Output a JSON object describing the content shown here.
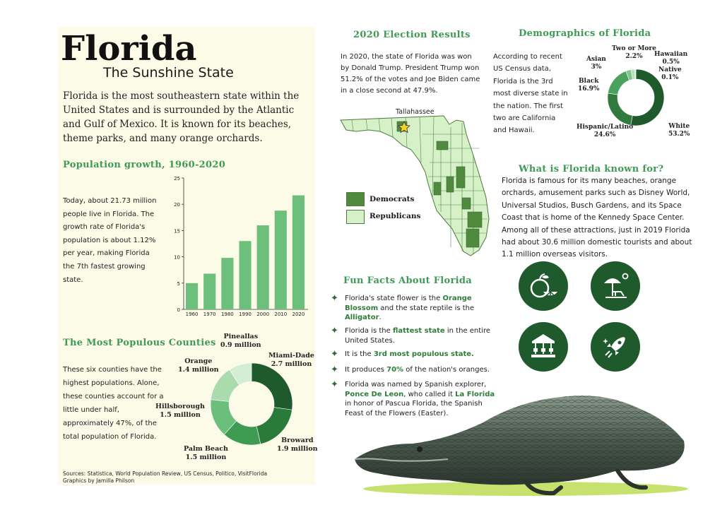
{
  "title": "Florida",
  "subtitle": "The Sunshine State",
  "intro": "Florida is the most southeastern state within the United States and is surrounded by the Atlantic and Gulf of Mexico. It is known for its beaches, theme parks, and many orange orchards.",
  "population": {
    "heading": "Population growth, 1960-2020",
    "text": "Today, about 21.73 million people live in Florida. The growth rate of Florida's population is about 1.12% per year, making Florida the 7th fastest growing state."
  },
  "counties": {
    "heading": "The Most Populous Counties",
    "text": "These six counties have the highest populations. Alone, these counties account for a little under half, approximately 47%, of the total population of Florida.",
    "labels": {
      "pineallas": [
        "Pineallas",
        "0.9 million"
      ],
      "miami": [
        "Miami-Dade",
        "2.7 million"
      ],
      "orange": [
        "Orange",
        "1.4 million"
      ],
      "hillsborough": [
        "Hillsborough",
        "1.5 million"
      ],
      "broward": [
        "Broward",
        "1.9 million"
      ],
      "palmbeach": [
        "Palm Beach",
        "1.5 million"
      ]
    }
  },
  "sources": {
    "line1": "Sources: Statistica, World Population Review, US Census, Politico, VisitFlorida",
    "line2": "Graphics by Jamilla Philson"
  },
  "election": {
    "heading": "2020 Election Results",
    "text": "In 2020, the state of Florida was won by Donald Trump. President Trump won 51.2% of the votes and Joe Biden came in a close second at 47.9%.",
    "capital": "Tallahassee",
    "legend": {
      "dem": "Democrats",
      "rep": "Republicans"
    }
  },
  "demographics": {
    "heading": "Demographics of Florida",
    "text": "According to recent US Census data, Florida is the 3rd most diverse state in the nation. The first two are California and Hawaii.",
    "labels": {
      "two": [
        "Two or More",
        "2.2%"
      ],
      "asian": [
        "Asian",
        "3%"
      ],
      "hawaiian": [
        "Hawaiian",
        "0.5%"
      ],
      "native": [
        "Native",
        "0.1%"
      ],
      "black": [
        "Black",
        "16.9%"
      ],
      "hispanic": [
        "Hispanic/Latino",
        "24.6%"
      ],
      "white": [
        "White",
        "53.2%"
      ]
    }
  },
  "known": {
    "heading": "What is Florida known for?",
    "text": "Florida is famous for its many beaches, orange orchards,  amusement parks such as Disney World, Universal Studios, Busch Gardens, and its Space Coast that is home of the Kennedy Space Center. Among all of these attractions, just in 2019 Florida had about 30.6 million domestic tourists and about 1.1 million overseas visitors."
  },
  "fun": {
    "heading": "Fun Facts About Florida",
    "facts": [
      {
        "a": "Florida's state flower is the ",
        "b": "Orange Blossom",
        "c": " and the state reptile is the ",
        "d": "Alligator",
        "e": "."
      },
      {
        "a": "Florida is the ",
        "b": "flattest state",
        "c": " in the entire United States."
      },
      {
        "a": "It is the ",
        "b": "3rd most populous state."
      },
      {
        "a": "It produces ",
        "b": "70%",
        "c": " of the nation's oranges."
      },
      {
        "a": "Florida was named by Spanish explorer, ",
        "b": "Ponce De Leon",
        "c": ", who called it ",
        "d": "La Florida",
        "e": " in honor of Pascua Florida, the Spanish Feast of the Flowers (Easter)."
      }
    ]
  },
  "icons": [
    "orange-icon",
    "beach-icon",
    "carousel-icon",
    "rocket-icon"
  ],
  "colors": {
    "accent": "#3e9a55",
    "dark": "#1e5a2b",
    "dem": "#4f8a3f",
    "rep": "#d6f0c8",
    "panel": "#fbfbe8"
  },
  "chart_data": [
    {
      "type": "bar",
      "categories": [
        "1960",
        "1970",
        "1980",
        "1990",
        "2000",
        "2010",
        "2020"
      ],
      "values": [
        5,
        6.8,
        9.8,
        13,
        16,
        18.8,
        21.7
      ],
      "title": "Population growth, 1960-2020",
      "ylim": [
        0,
        25
      ],
      "yticks": [
        0,
        5,
        10,
        15,
        20,
        25
      ]
    },
    {
      "type": "pie",
      "title": "The Most Populous Counties",
      "categories": [
        "Miami-Dade",
        "Broward",
        "Palm Beach",
        "Hillsborough",
        "Orange",
        "Pineallas"
      ],
      "values": [
        2.7,
        1.9,
        1.5,
        1.5,
        1.4,
        0.9
      ],
      "colors": [
        "#1e5a2b",
        "#2a7a3a",
        "#3f9a52",
        "#6cbf7b",
        "#a9dbae",
        "#d4eed3"
      ]
    },
    {
      "type": "pie",
      "title": "Demographics of Florida",
      "categories": [
        "White",
        "Hispanic/Latino",
        "Black",
        "Asian",
        "Two or More",
        "Hawaiian",
        "Native"
      ],
      "values": [
        53.2,
        24.6,
        16.9,
        3,
        2.2,
        0.5,
        0.1
      ],
      "colors": [
        "#1e5a2b",
        "#2f7a3c",
        "#4aa25c",
        "#7dc48a",
        "#b3e0b8",
        "#d9f0da",
        "#eef8ee"
      ]
    }
  ]
}
